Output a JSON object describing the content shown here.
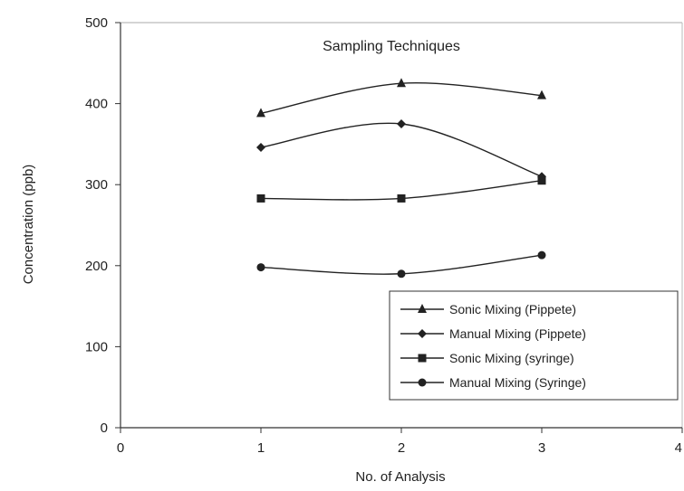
{
  "chart_data": {
    "type": "line",
    "title": "Sampling Techniques",
    "xlabel": "No. of Analysis",
    "ylabel": "Concentration (ppb)",
    "xlim": [
      0,
      4
    ],
    "ylim": [
      0,
      500
    ],
    "x_ticks": [
      "0",
      "1",
      "2",
      "3",
      "4"
    ],
    "y_ticks": [
      "0",
      "100",
      "200",
      "300",
      "400",
      "500"
    ],
    "grid": false,
    "legend_position": "bottom-right",
    "smooth": true,
    "series": [
      {
        "name": "Sonic Mixing (Pippete)",
        "marker": "triangle",
        "color": "#222222",
        "x": [
          1,
          2,
          3
        ],
        "y": [
          388,
          425,
          410
        ]
      },
      {
        "name": "Manual Mixing (Pippete)",
        "marker": "diamond",
        "color": "#222222",
        "x": [
          1,
          2,
          3
        ],
        "y": [
          346,
          375,
          310
        ]
      },
      {
        "name": "Sonic Mixing (syringe)",
        "marker": "square",
        "color": "#222222",
        "x": [
          1,
          2,
          3
        ],
        "y": [
          283,
          283,
          305
        ]
      },
      {
        "name": "Manual Mixing (Syringe)",
        "marker": "circle",
        "color": "#222222",
        "x": [
          1,
          2,
          3
        ],
        "y": [
          198,
          190,
          213
        ]
      }
    ]
  }
}
